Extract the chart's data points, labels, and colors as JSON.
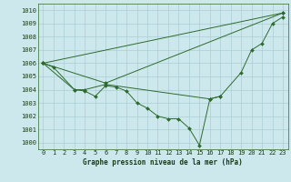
{
  "xlabel": "Graphe pression niveau de la mer (hPa)",
  "x_values": [
    0,
    1,
    2,
    3,
    4,
    5,
    6,
    7,
    8,
    9,
    10,
    11,
    12,
    13,
    14,
    15,
    16,
    17,
    18,
    19,
    20,
    21,
    22,
    23
  ],
  "series": [
    [
      1006.0,
      1005.7,
      null,
      1004.0,
      1003.9,
      1003.5,
      1004.3,
      1004.2,
      1003.9,
      1003.0,
      1002.6,
      1002.0,
      1001.8,
      1001.8,
      1001.1,
      999.8,
      1003.3,
      1003.5,
      null,
      null,
      null,
      null,
      null,
      null
    ],
    [
      1006.0,
      null,
      null,
      1004.0,
      1004.0,
      null,
      1004.4,
      null,
      null,
      null,
      null,
      null,
      null,
      null,
      null,
      null,
      1003.3,
      1003.5,
      null,
      1005.3,
      1007.0,
      1007.5,
      1009.0,
      1009.5
    ],
    [
      1006.0,
      null,
      null,
      null,
      null,
      null,
      1004.5,
      null,
      null,
      null,
      null,
      null,
      null,
      null,
      null,
      null,
      null,
      null,
      null,
      null,
      null,
      null,
      null,
      1009.8
    ],
    [
      1006.0,
      null,
      null,
      null,
      null,
      null,
      null,
      null,
      null,
      null,
      null,
      null,
      null,
      null,
      null,
      null,
      null,
      null,
      null,
      null,
      null,
      null,
      null,
      1009.8
    ]
  ],
  "ylim": [
    999.5,
    1010.5
  ],
  "yticks": [
    1000,
    1001,
    1002,
    1003,
    1004,
    1005,
    1006,
    1007,
    1008,
    1009,
    1010
  ],
  "xticks": [
    0,
    1,
    2,
    3,
    4,
    5,
    6,
    7,
    8,
    9,
    10,
    11,
    12,
    13,
    14,
    15,
    16,
    17,
    18,
    19,
    20,
    21,
    22,
    23
  ],
  "line_color": "#2d6a2d",
  "marker_color": "#2d6a2d",
  "bg_color": "#cce8ec",
  "grid_color": "#aacdd2",
  "text_color": "#1a3a1a",
  "xlabel_fontsize": 5.5,
  "tick_fontsize": 5.0
}
